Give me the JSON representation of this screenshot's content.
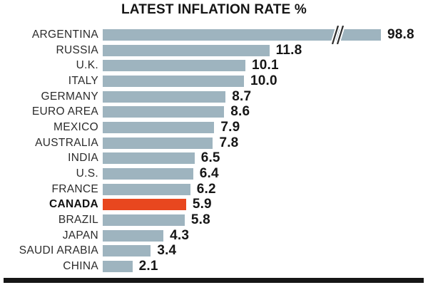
{
  "title": "LATEST INFLATION RATE %",
  "colors": {
    "bar": "#9EB4BF",
    "highlight": "#E8471F",
    "text": "#161616",
    "baseline": "#161616"
  },
  "chart_data": {
    "type": "bar",
    "orientation": "horizontal",
    "title": "LATEST INFLATION RATE %",
    "unit": "percent",
    "categories": [
      "ARGENTINA",
      "RUSSIA",
      "U.K.",
      "ITALY",
      "GERMANY",
      "EURO AREA",
      "MEXICO",
      "AUSTRALIA",
      "INDIA",
      "U.S.",
      "FRANCE",
      "CANADA",
      "BRAZIL",
      "JAPAN",
      "SAUDI ARABIA",
      "CHINA"
    ],
    "values": [
      98.8,
      11.8,
      10.1,
      10.0,
      8.7,
      8.6,
      7.9,
      7.8,
      6.5,
      6.4,
      6.2,
      5.9,
      5.8,
      4.3,
      3.4,
      2.1
    ],
    "value_labels": [
      "98.8",
      "11.8",
      "10.1",
      "10.0",
      "8.7",
      "8.6",
      "7.9",
      "7.8",
      "6.5",
      "6.4",
      "6.2",
      "5.9",
      "5.8",
      "4.3",
      "3.4",
      "2.1"
    ],
    "highlight_category": "CANADA",
    "axis_break_category": "ARGENTINA",
    "data_labels": true,
    "grid": false,
    "legend": false
  }
}
